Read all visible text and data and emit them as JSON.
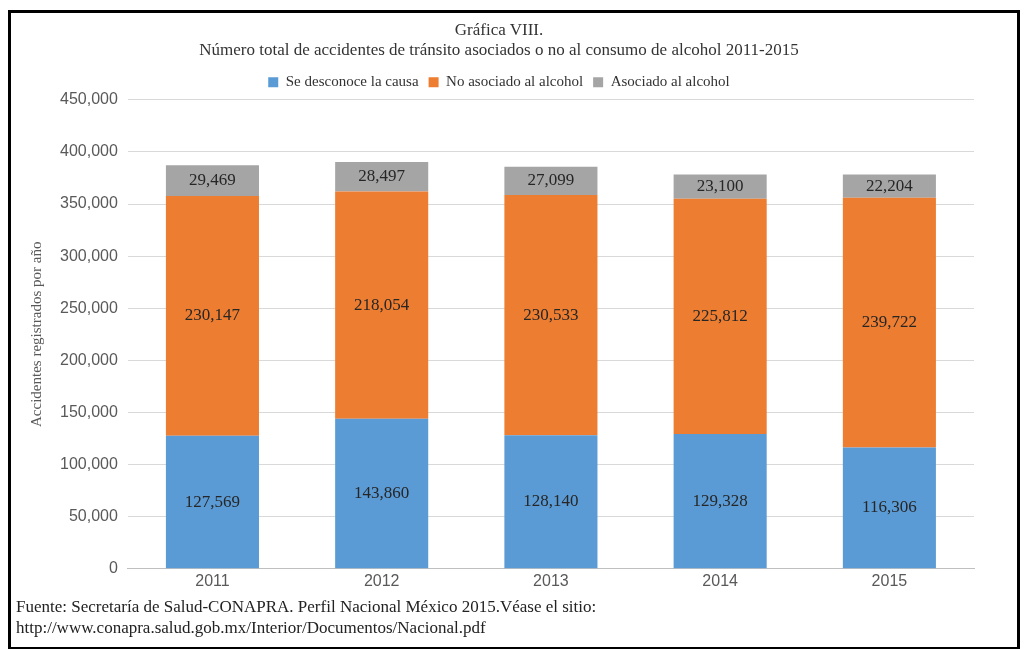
{
  "chart_data": {
    "type": "bar",
    "title": "Gráfica VIII.",
    "subtitle": "Número total de accidentes de tránsito asociados o no al consumo de alcohol 2011-2015",
    "ylabel": "Accidentes registrados por año",
    "categories": [
      "2011",
      "2012",
      "2013",
      "2014",
      "2015"
    ],
    "series": [
      {
        "name": "Se desconoce la causa",
        "color": "#5b9bd5",
        "values": [
          127569,
          143860,
          128140,
          129328,
          116306
        ],
        "value_labels": [
          "127,569",
          "143,860",
          "128,140",
          "129,328",
          "116,306"
        ]
      },
      {
        "name": "No asociado al alcohol",
        "color": "#ed7d31",
        "values": [
          230147,
          218054,
          230533,
          225812,
          239722
        ],
        "value_labels": [
          "230,147",
          "218,054",
          "230,533",
          "225,812",
          "239,722"
        ]
      },
      {
        "name": "Asociado al alcohol",
        "color": "#a5a5a5",
        "values": [
          29469,
          28497,
          27099,
          23100,
          22204
        ],
        "value_labels": [
          "29,469",
          "28,497",
          "27,099",
          "23,100",
          "22,204"
        ]
      }
    ],
    "stacked": true,
    "ylim": [
      0,
      450000
    ],
    "yticks": [
      0,
      {
        "value": 50000,
        "label": "50,000"
      },
      {
        "value": 100000,
        "label": "100,000"
      },
      {
        "value": 150000,
        "label": "150,000"
      },
      {
        "value": 200000,
        "label": "200,000"
      },
      {
        "value": 250000,
        "label": "250,000"
      },
      {
        "value": 300000,
        "label": "300,000"
      },
      {
        "value": 350000,
        "label": "350,000"
      },
      {
        "value": 400000,
        "label": "400,000"
      },
      {
        "value": 450000,
        "label": "450,000"
      }
    ],
    "grid": "y",
    "legend": "top",
    "annotations": [
      "Fuente: Secretaría de Salud-CONAPRA. Perfil Nacional México 2015.Véase el sitio:",
      "http://www.conapra.salud.gob.mx/Interior/Documentos/Nacional.pdf"
    ]
  }
}
